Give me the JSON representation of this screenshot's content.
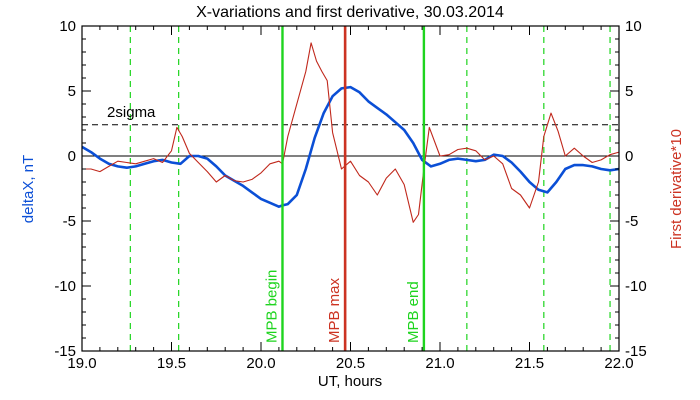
{
  "chart_data": {
    "type": "line",
    "title": "X-variations and first derivative, 30.03.2014",
    "xlabel": "UT, hours",
    "ylabel_left": "deltaX, nT",
    "ylabel_right": "First derivative*10",
    "xlim": [
      19.0,
      22.0
    ],
    "ylim_left": [
      -15,
      10
    ],
    "ylim_right": [
      -15,
      10
    ],
    "x_ticks": [
      19.0,
      19.5,
      20.0,
      20.5,
      21.0,
      21.5,
      22.0
    ],
    "x_tick_labels": [
      "19.0",
      "19.5",
      "20.0",
      "20.5",
      "21.0",
      "21.5",
      "22.0"
    ],
    "y_ticks": [
      10,
      5,
      0,
      -5,
      -10,
      -15
    ],
    "y_tick_labels": [
      "10",
      "5",
      "0",
      "-5",
      "-10",
      "-15"
    ],
    "grid": false,
    "legend": "none",
    "colors": {
      "deltaX": "#0b4fd6",
      "derivative": "#c0281c",
      "mpb_boundary": "#1ed41e",
      "mpb_max": "#cc3322",
      "dashed_green": "#1ed41e",
      "zero_line": "#000000",
      "sigma_line": "#000000",
      "right_axis_label": "#cc3322",
      "left_axis_label": "#0b4fd6"
    },
    "threshold": {
      "label": "2sigma",
      "value": 2.4
    },
    "zero_line": 0,
    "vertical_markers": [
      {
        "x": 20.12,
        "label": "MPB begin",
        "kind": "boundary"
      },
      {
        "x": 20.47,
        "label": "MPB max",
        "kind": "max"
      },
      {
        "x": 20.91,
        "label": "MPB end",
        "kind": "boundary"
      }
    ],
    "dashed_markers": [
      19.27,
      19.54,
      21.15,
      21.58,
      21.95
    ],
    "series": [
      {
        "axis": "left",
        "color": "#0b4fd6",
        "x": [
          19.0,
          19.05,
          19.1,
          19.15,
          19.2,
          19.25,
          19.3,
          19.35,
          19.4,
          19.45,
          19.5,
          19.55,
          19.6,
          19.65,
          19.7,
          19.75,
          19.8,
          19.85,
          19.9,
          19.95,
          20.0,
          20.05,
          20.1,
          20.12,
          20.15,
          20.2,
          20.25,
          20.3,
          20.35,
          20.4,
          20.45,
          20.5,
          20.55,
          20.6,
          20.65,
          20.7,
          20.75,
          20.8,
          20.85,
          20.9,
          20.95,
          21.0,
          21.05,
          21.1,
          21.15,
          21.2,
          21.25,
          21.3,
          21.35,
          21.4,
          21.45,
          21.5,
          21.55,
          21.6,
          21.65,
          21.7,
          21.75,
          21.8,
          21.85,
          21.9,
          21.95,
          22.0
        ],
        "values": [
          0.7,
          0.3,
          -0.2,
          -0.6,
          -0.8,
          -0.9,
          -0.8,
          -0.6,
          -0.4,
          -0.3,
          -0.5,
          -0.6,
          0.0,
          0.0,
          -0.2,
          -0.8,
          -1.5,
          -1.9,
          -2.3,
          -2.8,
          -3.3,
          -3.6,
          -3.9,
          -3.8,
          -3.7,
          -3.0,
          -1.0,
          1.4,
          3.3,
          4.6,
          5.2,
          5.3,
          4.9,
          4.2,
          3.7,
          3.2,
          2.6,
          2.0,
          1.0,
          -0.3,
          -0.8,
          -0.6,
          -0.3,
          -0.2,
          -0.3,
          -0.4,
          -0.3,
          0.1,
          0.0,
          -0.5,
          -1.2,
          -2.0,
          -2.6,
          -2.8,
          -2.0,
          -1.0,
          -0.7,
          -0.7,
          -0.8,
          -1.0,
          -1.1,
          -1.0
        ]
      },
      {
        "axis": "right",
        "color": "#c0281c",
        "x": [
          19.0,
          19.05,
          19.1,
          19.15,
          19.2,
          19.25,
          19.3,
          19.35,
          19.4,
          19.45,
          19.5,
          19.53,
          19.56,
          19.6,
          19.65,
          19.7,
          19.75,
          19.8,
          19.85,
          19.9,
          19.95,
          20.0,
          20.05,
          20.1,
          20.12,
          20.15,
          20.2,
          20.25,
          20.28,
          20.31,
          20.34,
          20.37,
          20.4,
          20.45,
          20.5,
          20.55,
          20.6,
          20.65,
          20.7,
          20.75,
          20.8,
          20.85,
          20.88,
          20.91,
          20.94,
          21.0,
          21.05,
          21.1,
          21.15,
          21.2,
          21.25,
          21.3,
          21.35,
          21.4,
          21.45,
          21.5,
          21.55,
          21.58,
          21.62,
          21.66,
          21.7,
          21.75,
          21.8,
          21.85,
          21.9,
          21.95,
          22.0
        ],
        "values": [
          -1.0,
          -1.0,
          -1.2,
          -0.8,
          -0.4,
          -0.5,
          -0.6,
          -0.4,
          -0.2,
          -0.5,
          0.4,
          2.2,
          1.5,
          0.2,
          -0.5,
          -1.2,
          -2.0,
          -1.5,
          -1.9,
          -2.0,
          -1.8,
          -1.3,
          -0.6,
          -0.4,
          -0.6,
          1.5,
          4.0,
          6.5,
          8.7,
          7.3,
          6.5,
          5.8,
          1.8,
          -1.0,
          -0.4,
          -1.5,
          -2.0,
          -3.0,
          -1.7,
          -1.0,
          -2.2,
          -5.1,
          -4.5,
          -1.0,
          2.2,
          0.0,
          0.1,
          0.5,
          0.6,
          0.4,
          -0.3,
          0.0,
          -0.6,
          -2.5,
          -3.0,
          -4.0,
          -2.0,
          1.5,
          3.3,
          1.9,
          0.0,
          0.6,
          0.0,
          -0.5,
          -0.3,
          0.1,
          0.3
        ]
      }
    ]
  }
}
